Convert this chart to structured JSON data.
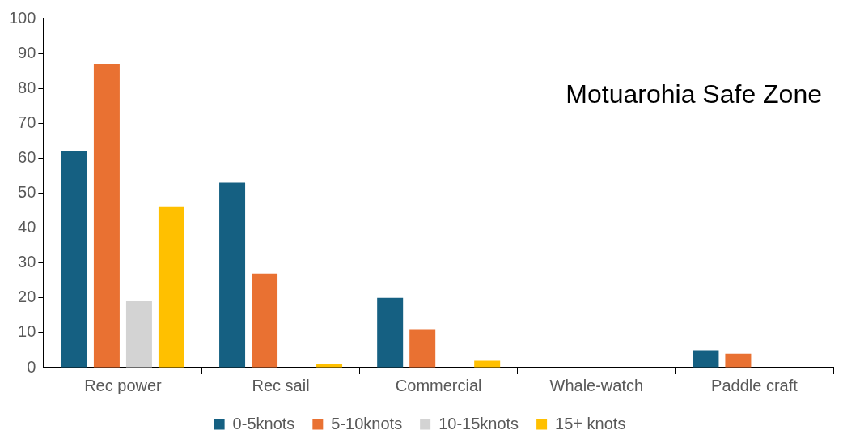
{
  "chart_data": {
    "type": "bar",
    "title": "Motuarohia Safe Zone",
    "categories": [
      "Rec power",
      "Rec sail",
      "Commercial",
      "Whale-watch",
      "Paddle craft"
    ],
    "series": [
      {
        "name": "0-5knots",
        "color": "#156082",
        "values": [
          62,
          53,
          20,
          0,
          5
        ]
      },
      {
        "name": "5-10knots",
        "color": "#e97132",
        "values": [
          87,
          27,
          11,
          0,
          4
        ]
      },
      {
        "name": "10-15knots",
        "color": "#d3d3d3",
        "values": [
          19,
          0,
          0,
          0,
          0
        ]
      },
      {
        "name": "15+ knots",
        "color": "#ffc000",
        "values": [
          46,
          1,
          2,
          0,
          0
        ]
      }
    ],
    "ylim": [
      0,
      100
    ],
    "yticks": [
      0,
      10,
      20,
      30,
      40,
      50,
      60,
      70,
      80,
      90,
      100
    ],
    "grid": false,
    "legend": "bottom"
  }
}
